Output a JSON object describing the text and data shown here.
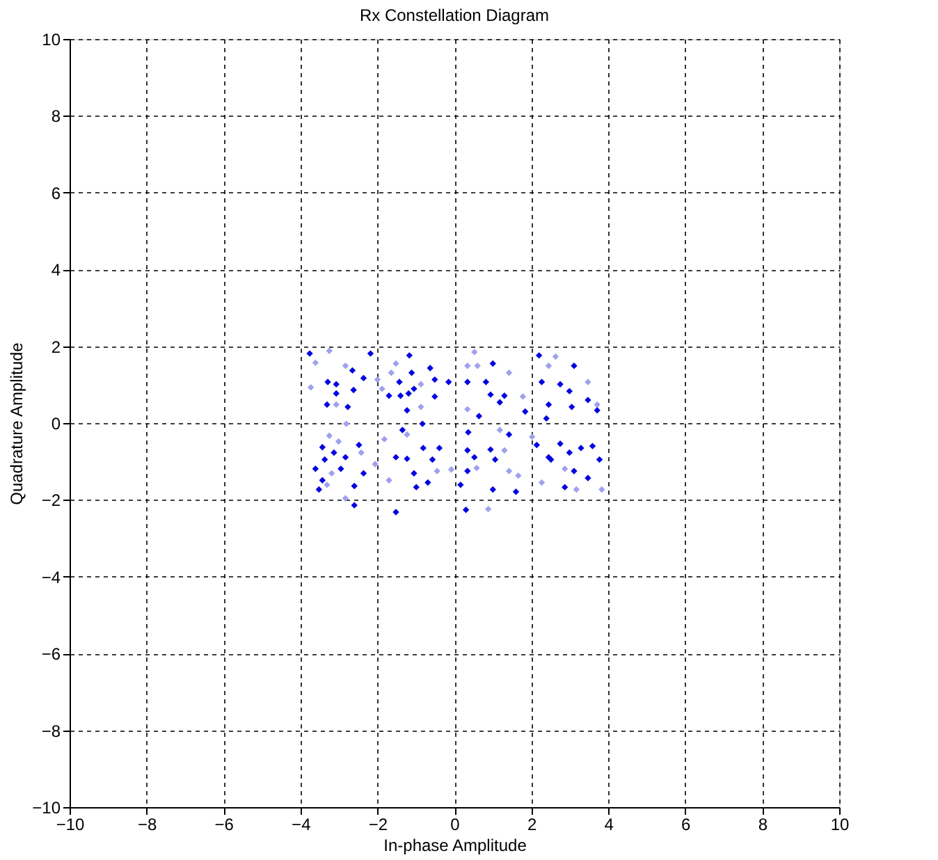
{
  "chart_data": {
    "type": "scatter",
    "title": "Rx Constellation Diagram",
    "xlabel": "In-phase Amplitude",
    "ylabel": "Quadrature Amplitude",
    "xlim": [
      -10,
      10
    ],
    "ylim": [
      -10,
      10
    ],
    "xticks": [
      -10,
      -8,
      -6,
      -4,
      -2,
      0,
      2,
      4,
      6,
      8,
      10
    ],
    "yticks": [
      -10,
      -8,
      -6,
      -4,
      -2,
      0,
      2,
      4,
      6,
      8,
      10
    ],
    "grid": true,
    "marker": "diamond",
    "legend": false,
    "series": [
      {
        "color": "#a0a0f0",
        "x": [
          -3.61,
          -3.25,
          -3.73,
          -2.83,
          -2.0,
          -3.07,
          -2.81,
          -1.52,
          -1.64,
          -0.87,
          -0.87,
          -1.88,
          -3.25,
          -3.01,
          -2.42,
          -3.19,
          -3.31,
          -1.7,
          -2.06,
          -0.45,
          -1.23,
          -1.82,
          -2.83,
          0.52,
          0.34,
          0.6,
          1.42,
          1.78,
          0.34,
          2.63,
          2.45,
          3.47,
          3.71,
          1.18,
          1.3,
          0.58,
          1.42,
          -0.08,
          1.66,
          2.27,
          0.88,
          2.02,
          2.87,
          3.83,
          3.17
        ],
        "values": [
          1.57,
          1.88,
          0.93,
          1.49,
          1.13,
          0.48,
          -0.02,
          1.55,
          1.31,
          1.01,
          0.42,
          0.89,
          -0.33,
          -0.48,
          -0.77,
          -1.31,
          -1.61,
          -1.49,
          -1.07,
          -1.25,
          -0.3,
          -0.42,
          -1.96,
          1.85,
          1.49,
          1.49,
          1.31,
          0.69,
          0.36,
          1.73,
          1.49,
          1.07,
          0.48,
          -0.18,
          -0.71,
          -1.17,
          -1.25,
          -1.21,
          -1.37,
          -1.55,
          -2.24,
          -0.36,
          -1.19,
          -1.73,
          -1.73
        ]
      },
      {
        "color": "#0000e0",
        "x": [
          -3.76,
          -2.18,
          -3.29,
          -2.65,
          -2.36,
          -3.07,
          -2.62,
          -3.31,
          -3.07,
          -2.77,
          -1.17,
          -0.63,
          -1.11,
          -1.43,
          -1.7,
          -1.4,
          -1.19,
          -1.05,
          -0.51,
          -0.15,
          -0.51,
          -1.23,
          -0.83,
          -1.35,
          -0.81,
          -0.39,
          -3.43,
          -3.13,
          -2.48,
          -2.83,
          -3.37,
          -3.61,
          -2.95,
          -2.36,
          -3.43,
          -3.52,
          -2.6,
          -1.52,
          -1.23,
          -1.05,
          -0.57,
          -0.69,
          -0.99,
          -1.52,
          -2.6,
          1.0,
          0.34,
          0.82,
          0.94,
          1.3,
          1.18,
          1.84,
          0.64,
          2.2,
          3.11,
          2.27,
          2.75,
          2.99,
          2.45,
          3.05,
          3.47,
          3.71,
          2.39,
          0.36,
          1.42,
          0.94,
          0.34,
          0.52,
          1.06,
          0.34,
          0.16,
          1.0,
          1.6,
          2.14,
          2.75,
          2.99,
          3.29,
          3.59,
          3.77,
          2.51,
          3.11,
          2.87,
          3.47,
          0.3,
          2.45
        ],
        "values": [
          1.81,
          1.81,
          1.07,
          1.37,
          1.17,
          1.01,
          0.86,
          0.48,
          0.77,
          0.42,
          1.76,
          1.43,
          1.31,
          1.07,
          0.71,
          0.71,
          0.77,
          0.89,
          1.13,
          1.07,
          0.69,
          0.33,
          -0.02,
          -0.18,
          -0.65,
          -0.65,
          -0.63,
          -0.77,
          -0.57,
          -0.89,
          -0.95,
          -1.19,
          -1.19,
          -1.31,
          -1.49,
          -1.73,
          -1.64,
          -0.89,
          -0.93,
          -1.31,
          -0.95,
          -1.55,
          -1.67,
          -2.32,
          -2.14,
          1.55,
          1.07,
          1.07,
          0.74,
          0.71,
          0.54,
          0.3,
          0.18,
          1.76,
          1.49,
          1.07,
          1.01,
          0.83,
          0.48,
          0.42,
          0.6,
          0.33,
          0.12,
          -0.24,
          -0.3,
          -0.69,
          -0.71,
          -0.89,
          -0.95,
          -1.25,
          -1.61,
          -1.73,
          -1.79,
          -0.57,
          -0.54,
          -0.77,
          -0.65,
          -0.6,
          -0.95,
          -0.95,
          -1.25,
          -1.67,
          -1.43,
          -2.26,
          -0.89
        ]
      }
    ]
  }
}
